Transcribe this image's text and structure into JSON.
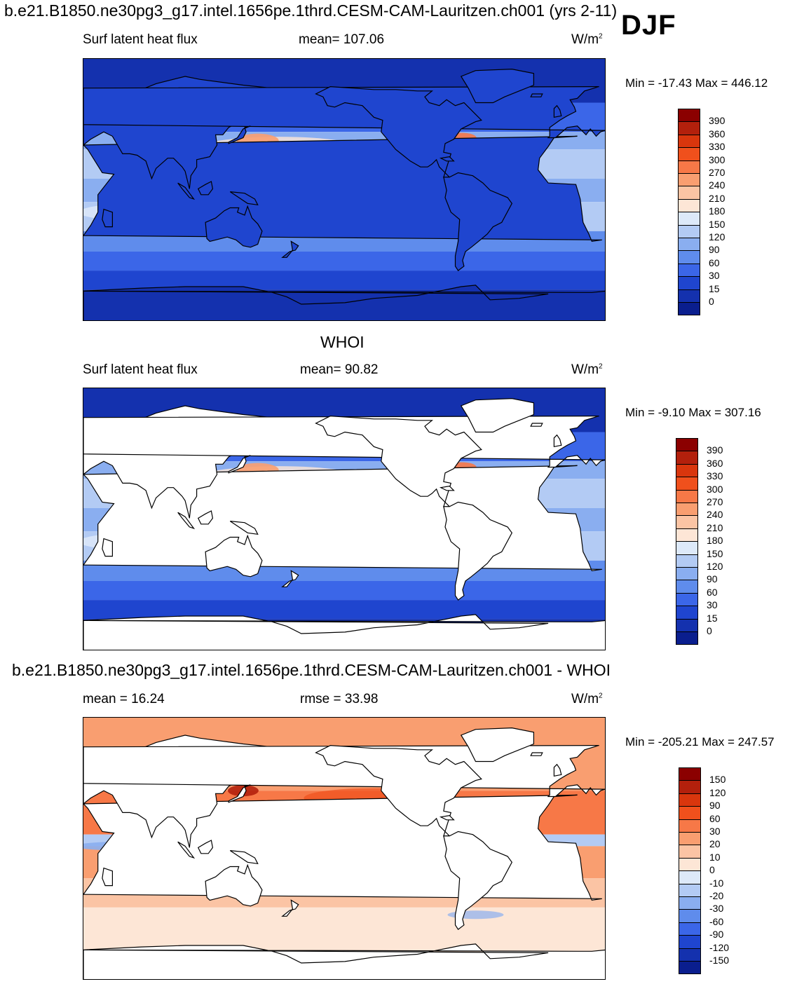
{
  "header": {
    "title": "b.e21.B1850.ne30pg3_g17.intel.1656pe.1thrd.CESM-CAM-Lauritzen.ch001 (yrs 2-11)",
    "season": "DJF"
  },
  "panels": [
    {
      "id": "model",
      "subtitle": "",
      "left_label": "Surf latent heat flux",
      "center_label": "mean= 107.06",
      "units": "W/m",
      "units_sup": "2",
      "minmax": "Min = -17.43 Max = 446.12",
      "palette": "sequential",
      "colorbar": {
        "levels": [
          "390",
          "360",
          "330",
          "300",
          "270",
          "240",
          "210",
          "180",
          "150",
          "120",
          "90",
          "60",
          "30",
          "15",
          "0"
        ],
        "colors": [
          "#8b0000",
          "#b3200c",
          "#d9360d",
          "#f0501c",
          "#f77847",
          "#f99e70",
          "#fbc4a4",
          "#fde6d6",
          "#dde9f9",
          "#b3cbf4",
          "#8aaef0",
          "#5f8cec",
          "#3b66e8",
          "#1f45cf",
          "#1431ae",
          "#0a1e8e"
        ]
      }
    },
    {
      "id": "obs",
      "subtitle": "WHOI",
      "left_label": "Surf latent heat flux",
      "center_label": "mean=  90.82",
      "units": "W/m",
      "units_sup": "2",
      "minmax": "Min =  -9.10 Max = 307.16",
      "palette": "sequential",
      "colorbar": {
        "levels": [
          "390",
          "360",
          "330",
          "300",
          "270",
          "240",
          "210",
          "180",
          "150",
          "120",
          "90",
          "60",
          "30",
          "15",
          "0"
        ],
        "colors": [
          "#8b0000",
          "#b3200c",
          "#d9360d",
          "#f0501c",
          "#f77847",
          "#f99e70",
          "#fbc4a4",
          "#fde6d6",
          "#dde9f9",
          "#b3cbf4",
          "#8aaef0",
          "#5f8cec",
          "#3b66e8",
          "#1f45cf",
          "#1431ae",
          "#0a1e8e"
        ]
      }
    },
    {
      "id": "diff",
      "subtitle": "b.e21.B1850.ne30pg3_g17.intel.1656pe.1thrd.CESM-CAM-Lauritzen.ch001 - WHOI",
      "left_label": "mean =  16.24",
      "center_label": "rmse =  33.98",
      "units": "W/m",
      "units_sup": "2",
      "minmax": "Min = -205.21 Max = 247.57",
      "palette": "diverging",
      "colorbar": {
        "levels": [
          "150",
          "120",
          "90",
          "60",
          "30",
          "20",
          "10",
          "0",
          "-10",
          "-20",
          "-30",
          "-60",
          "-90",
          "-120",
          "-150"
        ],
        "colors": [
          "#8b0000",
          "#b3200c",
          "#d9360d",
          "#f0501c",
          "#f77847",
          "#f99e70",
          "#fbc4a4",
          "#fde6d6",
          "#dde9f9",
          "#b3cbf4",
          "#8aaef0",
          "#5f8cec",
          "#3b66e8",
          "#1f45cf",
          "#1431ae",
          "#0a1e8e"
        ]
      }
    }
  ]
}
